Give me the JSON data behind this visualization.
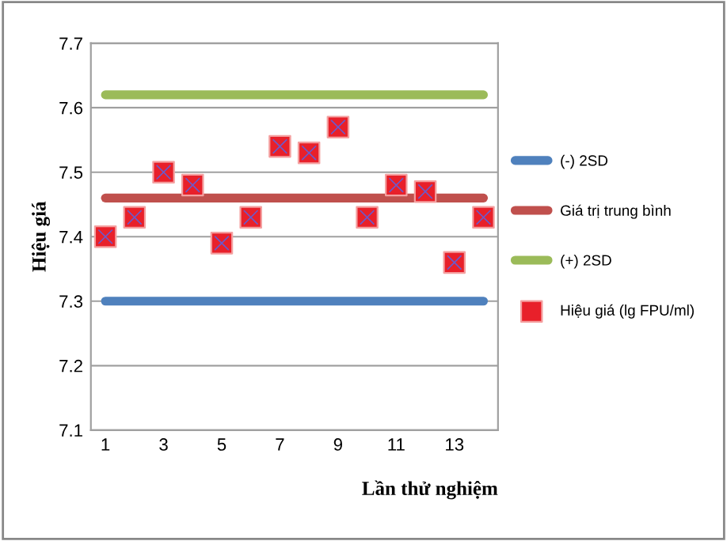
{
  "chart_data": {
    "type": "line",
    "xlabel": "Lần thử nghiệm",
    "ylabel": "Hiệu giá",
    "categories": [
      "1",
      null,
      "3",
      null,
      "5",
      null,
      "7",
      null,
      "9",
      null,
      "11",
      null,
      "13",
      null
    ],
    "series": [
      {
        "name": "(-) 2SD",
        "color": "#4f81bd",
        "marker": "none",
        "values": [
          7.3,
          7.3,
          7.3,
          7.3,
          7.3,
          7.3,
          7.3,
          7.3,
          7.3,
          7.3,
          7.3,
          7.3,
          7.3,
          7.3
        ]
      },
      {
        "name": "Giá trị trung bình",
        "color": "#c0504d",
        "marker": "none",
        "values": [
          7.46,
          7.46,
          7.46,
          7.46,
          7.46,
          7.46,
          7.46,
          7.46,
          7.46,
          7.46,
          7.46,
          7.46,
          7.46,
          7.46
        ]
      },
      {
        "name": "(+) 2SD",
        "color": "#9bbb59",
        "marker": "none",
        "values": [
          7.62,
          7.62,
          7.62,
          7.62,
          7.62,
          7.62,
          7.62,
          7.62,
          7.62,
          7.62,
          7.62,
          7.62,
          7.62,
          7.62
        ]
      },
      {
        "name": "Hiệu giá (lg FPU/ml)",
        "type": "scatter",
        "color": "#e8202a",
        "marker": "square",
        "values": [
          7.4,
          7.43,
          7.5,
          7.48,
          7.39,
          7.43,
          7.54,
          7.53,
          7.57,
          7.43,
          7.48,
          7.47,
          7.36,
          7.43
        ]
      }
    ],
    "ylim": [
      7.1,
      7.7
    ],
    "yticks": [
      7.1,
      7.2,
      7.3,
      7.4,
      7.5,
      7.6,
      7.7
    ],
    "grid": "y",
    "legend": "right"
  }
}
